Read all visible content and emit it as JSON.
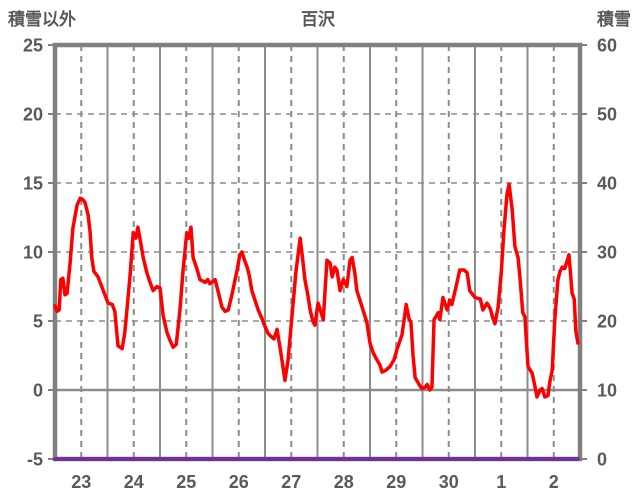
{
  "header": {
    "left_label": "積雪以外",
    "title": "百沢",
    "right_label": "積雪"
  },
  "colors": {
    "border": "#808080",
    "grid": "#8c8c8c",
    "text": "#595959",
    "temperature_series": "#ff0000",
    "snow_series": "#7030a0"
  },
  "chart_data": {
    "type": "line",
    "title": "百沢",
    "left_axis": {
      "title": "積雪以外",
      "min": -5,
      "max": 25,
      "ticks": [
        25,
        20,
        15,
        10,
        5,
        0,
        -5
      ]
    },
    "right_axis": {
      "title": "積雪",
      "min": 0,
      "max": 60,
      "ticks": [
        60,
        50,
        40,
        30,
        20,
        10,
        0
      ]
    },
    "x_axis": {
      "tick_labels": [
        "23",
        "24",
        "25",
        "26",
        "27",
        "28",
        "29",
        "30",
        "1",
        "2"
      ],
      "days": 10,
      "labels_at": "midday"
    },
    "grid": {
      "horizontal_dashed_left_values": [
        20,
        15,
        10,
        5
      ],
      "horizontal_solid_left_values": [
        0
      ],
      "vertical_solid": "day_boundaries",
      "vertical_dashed": "midday"
    },
    "series": [
      {
        "name": "積雪以外",
        "axis": "left",
        "color": "#ff0000",
        "width": 3.5,
        "points": [
          [
            0,
            6.1
          ],
          [
            0.04,
            5.7
          ],
          [
            0.08,
            5.8
          ],
          [
            0.11,
            8.0
          ],
          [
            0.15,
            8.1
          ],
          [
            0.19,
            6.9
          ],
          [
            0.23,
            7.0
          ],
          [
            0.29,
            9.3
          ],
          [
            0.34,
            11.7
          ],
          [
            0.42,
            13.4
          ],
          [
            0.48,
            13.9
          ],
          [
            0.53,
            13.8
          ],
          [
            0.57,
            13.6
          ],
          [
            0.63,
            12.7
          ],
          [
            0.67,
            11.4
          ],
          [
            0.7,
            9.6
          ],
          [
            0.74,
            8.6
          ],
          [
            0.78,
            8.4
          ],
          [
            0.82,
            8.2
          ],
          [
            0.9,
            7.4
          ],
          [
            0.95,
            6.9
          ],
          [
            1.01,
            6.3
          ],
          [
            1.09,
            6.2
          ],
          [
            1.14,
            5.7
          ],
          [
            1.2,
            3.2
          ],
          [
            1.28,
            3.0
          ],
          [
            1.33,
            4.2
          ],
          [
            1.37,
            5.8
          ],
          [
            1.43,
            8.3
          ],
          [
            1.49,
            11.4
          ],
          [
            1.54,
            11.0
          ],
          [
            1.58,
            11.8
          ],
          [
            1.64,
            10.5
          ],
          [
            1.68,
            9.6
          ],
          [
            1.75,
            8.5
          ],
          [
            1.81,
            7.8
          ],
          [
            1.87,
            7.2
          ],
          [
            1.94,
            7.5
          ],
          [
            2.0,
            7.4
          ],
          [
            2.06,
            5.4
          ],
          [
            2.13,
            4.2
          ],
          [
            2.19,
            3.6
          ],
          [
            2.25,
            3.1
          ],
          [
            2.31,
            3.3
          ],
          [
            2.38,
            5.8
          ],
          [
            2.44,
            8.7
          ],
          [
            2.51,
            11.4
          ],
          [
            2.55,
            11.0
          ],
          [
            2.59,
            11.8
          ],
          [
            2.63,
            9.6
          ],
          [
            2.71,
            8.7
          ],
          [
            2.76,
            8.0
          ],
          [
            2.86,
            7.8
          ],
          [
            2.91,
            8.0
          ],
          [
            2.95,
            7.7
          ],
          [
            3.05,
            8.0
          ],
          [
            3.11,
            7.1
          ],
          [
            3.18,
            6.0
          ],
          [
            3.24,
            5.7
          ],
          [
            3.3,
            5.8
          ],
          [
            3.37,
            6.9
          ],
          [
            3.43,
            8.0
          ],
          [
            3.47,
            8.7
          ],
          [
            3.52,
            9.8
          ],
          [
            3.56,
            10.0
          ],
          [
            3.62,
            9.3
          ],
          [
            3.66,
            8.9
          ],
          [
            3.7,
            8.3
          ],
          [
            3.75,
            7.2
          ],
          [
            3.81,
            6.5
          ],
          [
            3.87,
            5.8
          ],
          [
            3.94,
            5.2
          ],
          [
            4.0,
            4.6
          ],
          [
            4.06,
            4.1
          ],
          [
            4.11,
            3.9
          ],
          [
            4.17,
            3.7
          ],
          [
            4.23,
            4.4
          ],
          [
            4.31,
            2.5
          ],
          [
            4.38,
            0.7
          ],
          [
            4.44,
            2.2
          ],
          [
            4.51,
            5.2
          ],
          [
            4.59,
            8.6
          ],
          [
            4.67,
            11.0
          ],
          [
            4.72,
            9.4
          ],
          [
            4.76,
            8.0
          ],
          [
            4.82,
            6.8
          ],
          [
            4.86,
            5.8
          ],
          [
            4.91,
            5.0
          ],
          [
            4.95,
            4.7
          ],
          [
            5.01,
            6.3
          ],
          [
            5.07,
            5.6
          ],
          [
            5.11,
            5.1
          ],
          [
            5.18,
            9.4
          ],
          [
            5.24,
            9.2
          ],
          [
            5.28,
            8.2
          ],
          [
            5.33,
            8.9
          ],
          [
            5.37,
            8.7
          ],
          [
            5.43,
            7.2
          ],
          [
            5.49,
            8.0
          ],
          [
            5.56,
            7.5
          ],
          [
            5.62,
            9.4
          ],
          [
            5.66,
            9.6
          ],
          [
            5.71,
            8.5
          ],
          [
            5.75,
            7.2
          ],
          [
            5.85,
            6.0
          ],
          [
            5.94,
            4.9
          ],
          [
            6.0,
            3.4
          ],
          [
            6.06,
            2.7
          ],
          [
            6.13,
            2.2
          ],
          [
            6.19,
            1.8
          ],
          [
            6.23,
            1.3
          ],
          [
            6.29,
            1.4
          ],
          [
            6.38,
            1.7
          ],
          [
            6.46,
            2.2
          ],
          [
            6.51,
            2.9
          ],
          [
            6.61,
            4.0
          ],
          [
            6.69,
            6.2
          ],
          [
            6.74,
            5.2
          ],
          [
            6.78,
            4.9
          ],
          [
            6.82,
            2.5
          ],
          [
            6.86,
            0.9
          ],
          [
            6.95,
            0.3
          ],
          [
            6.99,
            0.1
          ],
          [
            7.05,
            0.2
          ],
          [
            7.09,
            0.4
          ],
          [
            7.14,
            0.0
          ],
          [
            7.18,
            0.2
          ],
          [
            7.22,
            5.1
          ],
          [
            7.3,
            5.6
          ],
          [
            7.33,
            5.1
          ],
          [
            7.39,
            6.7
          ],
          [
            7.47,
            5.8
          ],
          [
            7.52,
            6.5
          ],
          [
            7.56,
            6.2
          ],
          [
            7.64,
            7.5
          ],
          [
            7.71,
            8.7
          ],
          [
            7.79,
            8.7
          ],
          [
            7.85,
            8.5
          ],
          [
            7.9,
            7.2
          ],
          [
            8.0,
            6.7
          ],
          [
            8.1,
            6.6
          ],
          [
            8.15,
            5.8
          ],
          [
            8.23,
            6.3
          ],
          [
            8.29,
            5.9
          ],
          [
            8.34,
            5.2
          ],
          [
            8.38,
            4.8
          ],
          [
            8.44,
            6.0
          ],
          [
            8.5,
            8.5
          ],
          [
            8.55,
            11.5
          ],
          [
            8.61,
            14.2
          ],
          [
            8.65,
            14.9
          ],
          [
            8.71,
            13.0
          ],
          [
            8.76,
            10.4
          ],
          [
            8.82,
            9.6
          ],
          [
            8.86,
            8.0
          ],
          [
            8.91,
            5.6
          ],
          [
            8.95,
            5.3
          ],
          [
            9.01,
            1.7
          ],
          [
            9.09,
            1.2
          ],
          [
            9.14,
            0.3
          ],
          [
            9.18,
            -0.5
          ],
          [
            9.24,
            0.0
          ],
          [
            9.28,
            0.1
          ],
          [
            9.33,
            -0.5
          ],
          [
            9.39,
            -0.4
          ],
          [
            9.43,
            0.7
          ],
          [
            9.47,
            1.4
          ],
          [
            9.52,
            5.1
          ],
          [
            9.58,
            8.0
          ],
          [
            9.62,
            8.6
          ],
          [
            9.66,
            8.9
          ],
          [
            9.71,
            8.8
          ],
          [
            9.75,
            9.3
          ],
          [
            9.79,
            9.8
          ],
          [
            9.85,
            7.0
          ],
          [
            9.89,
            6.6
          ],
          [
            9.92,
            4.3
          ],
          [
            9.96,
            3.4
          ]
        ]
      },
      {
        "name": "積雪",
        "axis": "right",
        "color": "#7030a0",
        "width": 4,
        "segments": [
          [
            [
              0,
              0
            ],
            [
              2.03,
              0
            ]
          ],
          [
            [
              2.07,
              0
            ],
            [
              9.96,
              0
            ]
          ]
        ]
      }
    ]
  }
}
